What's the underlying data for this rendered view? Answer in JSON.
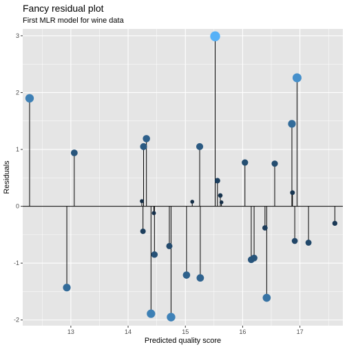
{
  "chart_data": {
    "type": "scatter",
    "title": "Fancy residual plot",
    "subtitle": "First MLR model for wine data",
    "xlabel": "Predicted quality score",
    "ylabel": "Residuals",
    "xlim": [
      12.16,
      17.75
    ],
    "ylim": [
      -2.1,
      3.12
    ],
    "x_ticks": [
      13,
      14,
      15,
      16,
      17
    ],
    "y_ticks": [
      -2,
      -1,
      0,
      1,
      2,
      3
    ],
    "grid": true,
    "background": "#e5e5e5",
    "grid_color": "#ffffff",
    "color_scale": {
      "low": "#132b43",
      "high": "#56b1f7"
    },
    "reference_line": 0,
    "points": [
      {
        "x": 12.28,
        "y": 1.9
      },
      {
        "x": 12.93,
        "y": -1.43
      },
      {
        "x": 13.06,
        "y": 0.94
      },
      {
        "x": 14.24,
        "y": 0.09
      },
      {
        "x": 14.26,
        "y": -0.44
      },
      {
        "x": 14.27,
        "y": 1.05
      },
      {
        "x": 14.32,
        "y": 1.19
      },
      {
        "x": 14.4,
        "y": -1.89
      },
      {
        "x": 14.45,
        "y": -0.12
      },
      {
        "x": 14.46,
        "y": -0.85
      },
      {
        "x": 14.72,
        "y": -0.7
      },
      {
        "x": 14.75,
        "y": -1.95
      },
      {
        "x": 15.02,
        "y": -1.21
      },
      {
        "x": 15.12,
        "y": 0.08
      },
      {
        "x": 15.25,
        "y": 1.05
      },
      {
        "x": 15.26,
        "y": -1.26
      },
      {
        "x": 15.52,
        "y": 2.99
      },
      {
        "x": 15.56,
        "y": 0.45
      },
      {
        "x": 15.61,
        "y": 0.19
      },
      {
        "x": 15.63,
        "y": 0.07
      },
      {
        "x": 16.04,
        "y": 0.77
      },
      {
        "x": 16.15,
        "y": -0.94
      },
      {
        "x": 16.2,
        "y": -0.91
      },
      {
        "x": 16.39,
        "y": -0.38
      },
      {
        "x": 16.42,
        "y": -1.61
      },
      {
        "x": 16.56,
        "y": 0.75
      },
      {
        "x": 16.86,
        "y": 1.45
      },
      {
        "x": 16.87,
        "y": 0.24
      },
      {
        "x": 16.91,
        "y": -0.61
      },
      {
        "x": 16.95,
        "y": 2.26
      },
      {
        "x": 17.15,
        "y": -0.64
      },
      {
        "x": 17.61,
        "y": -0.3
      }
    ]
  }
}
